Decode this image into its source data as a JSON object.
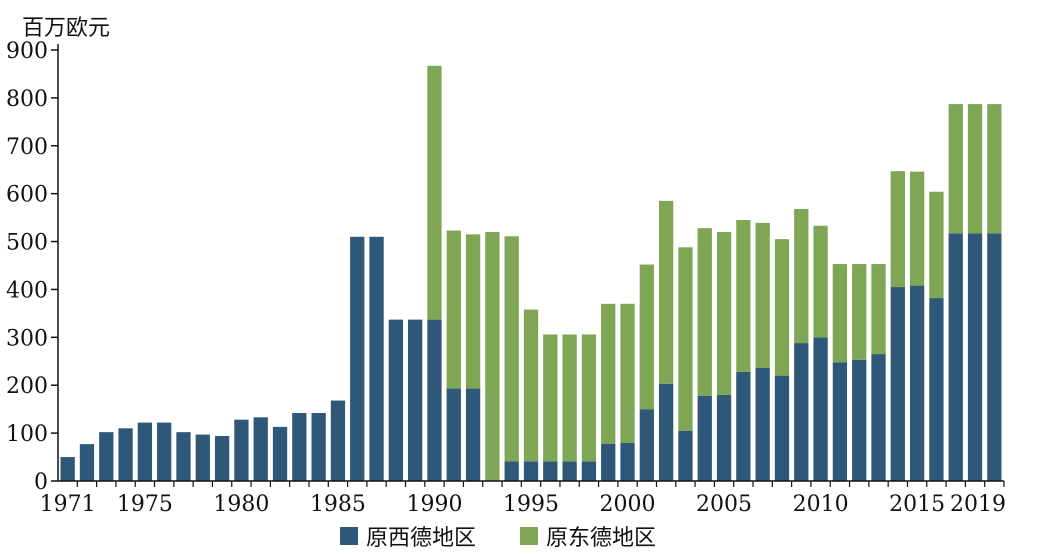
{
  "chart_data": {
    "type": "bar",
    "stacked": true,
    "ylabel": "百万欧元",
    "ylim": [
      0,
      900
    ],
    "yticks": [
      0,
      100,
      200,
      300,
      400,
      500,
      600,
      700,
      800,
      900
    ],
    "xtick_labels": [
      "1971",
      "1975",
      "1980",
      "1985",
      "1990",
      "1995",
      "2000",
      "2005",
      "2010",
      "2015",
      "2019"
    ],
    "grid": false,
    "legend_position": "bottom",
    "categories": [
      "1971",
      "1972",
      "1973",
      "1974",
      "1975",
      "1976",
      "1977",
      "1978",
      "1979",
      "1980",
      "1981",
      "1982",
      "1983",
      "1984",
      "1985",
      "1986",
      "1987",
      "1988",
      "1989",
      "1990",
      "1991",
      "1992",
      "1993",
      "1994",
      "1995",
      "1996",
      "1997",
      "1998",
      "1999",
      "2000",
      "2001",
      "2002",
      "2003",
      "2004",
      "2005",
      "2006",
      "2007",
      "2008",
      "2009",
      "2010",
      "2011",
      "2012",
      "2013",
      "2014",
      "2015",
      "2016",
      "2017",
      "2018",
      "2019"
    ],
    "series": [
      {
        "name": "原西德地区",
        "color": "#2f5878",
        "values": [
          50,
          77,
          102,
          110,
          122,
          122,
          102,
          97,
          94,
          128,
          133,
          113,
          142,
          142,
          168,
          510,
          510,
          337,
          337,
          337,
          193,
          193,
          0,
          41,
          41,
          41,
          41,
          41,
          78,
          80,
          150,
          203,
          105,
          178,
          180,
          228,
          236,
          220,
          288,
          300,
          248,
          253,
          265,
          405,
          408,
          382,
          517,
          517,
          517
        ]
      },
      {
        "name": "原东德地区",
        "color": "#7ea654",
        "values": [
          0,
          0,
          0,
          0,
          0,
          0,
          0,
          0,
          0,
          0,
          0,
          0,
          0,
          0,
          0,
          0,
          0,
          0,
          0,
          530,
          330,
          322,
          520,
          470,
          317,
          265,
          265,
          265,
          292,
          290,
          302,
          382,
          383,
          350,
          340,
          317,
          303,
          285,
          280,
          233,
          205,
          200,
          188,
          242,
          238,
          222,
          270,
          270,
          270
        ]
      }
    ]
  }
}
